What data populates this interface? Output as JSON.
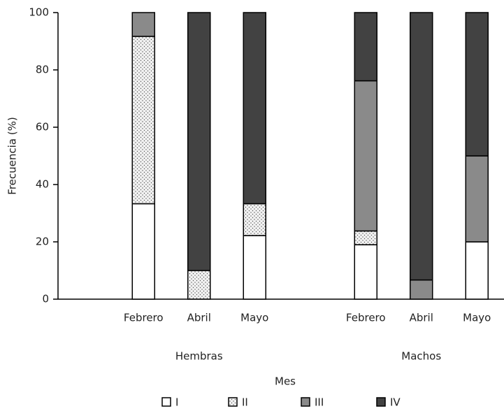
{
  "chart_data": {
    "type": "stacked_bar",
    "y_label": "Frecuencia (%)",
    "x_label": "Mes",
    "categories": [
      null,
      "Febrero",
      "Abril",
      "Mayo",
      null,
      "Febrero",
      "Abril",
      "Mayo"
    ],
    "groups": [
      "Hembras",
      "Machos"
    ],
    "series": [
      {
        "name": "I",
        "color": "#ffffff",
        "values": [
          null,
          33.3,
          0,
          22.2,
          null,
          19,
          0,
          20
        ]
      },
      {
        "name": "II",
        "color": "#f2f2f2",
        "pattern": "dots",
        "values": [
          null,
          58.4,
          10,
          11.1,
          null,
          4.8,
          0,
          0
        ]
      },
      {
        "name": "III",
        "color": "#8a8a8a",
        "values": [
          null,
          8.3,
          0,
          0,
          null,
          52.4,
          6.7,
          30
        ]
      },
      {
        "name": "IV",
        "color": "#424242",
        "values": [
          null,
          0,
          90,
          66.7,
          null,
          23.8,
          93.3,
          50
        ]
      }
    ],
    "ylim": [
      0,
      100
    ],
    "yticks": [
      0,
      20,
      40,
      60,
      80,
      100
    ],
    "grid": false
  }
}
